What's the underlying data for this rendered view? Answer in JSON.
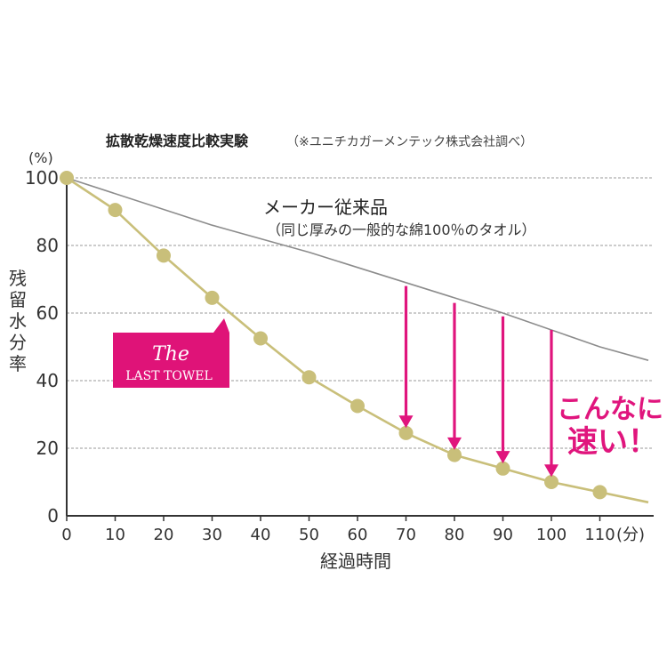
{
  "header": {
    "title": "拡散乾燥速度比較実験",
    "note": "（※ユニチカガーメンテック株式会社調べ）"
  },
  "chart_data": {
    "type": "line",
    "title": "拡散乾燥速度比較実験",
    "ylabel": "残留水分率",
    "yunit": "(%)",
    "xlabel": "経過時間",
    "xunit": "(分)",
    "xlim": [
      0,
      120
    ],
    "ylim": [
      0,
      100
    ],
    "x_ticks": [
      0,
      10,
      20,
      30,
      40,
      50,
      60,
      70,
      80,
      90,
      100,
      110
    ],
    "y_ticks": [
      0,
      20,
      40,
      60,
      80,
      100
    ],
    "grid": "horizontal-dashed",
    "series": [
      {
        "name": "メーカー従来品",
        "sublabel": "（同じ厚みの一般的な綿100％のタオル）",
        "color": "#8c8c8c",
        "x": [
          0,
          30,
          50,
          70,
          90,
          110,
          120
        ],
        "values": [
          100,
          86,
          78,
          69,
          60,
          50,
          46
        ]
      },
      {
        "name": "The LAST TOWEL",
        "color": "#c9bf7a",
        "x": [
          0,
          10,
          20,
          30,
          40,
          50,
          60,
          70,
          80,
          90,
          100,
          110,
          120
        ],
        "values": [
          100,
          90.5,
          77,
          64.5,
          52.5,
          41,
          32.5,
          24.5,
          18,
          14,
          10,
          7,
          4
        ],
        "markers_x": [
          0,
          10,
          20,
          30,
          40,
          50,
          60,
          70,
          80,
          90,
          100,
          110
        ]
      }
    ],
    "comparison_arrows": [
      {
        "x": 70,
        "from": 68,
        "to": 26
      },
      {
        "x": 80,
        "from": 63,
        "to": 19.5
      },
      {
        "x": 90,
        "from": 59,
        "to": 15.5
      },
      {
        "x": 100,
        "from": 55,
        "to": 11.5
      }
    ],
    "callout": {
      "line1": "こんなに",
      "line2": "速い！",
      "color": "#e0157d"
    },
    "brand_badge": {
      "script": "The",
      "name": "LAST TOWEL",
      "color": "#df1378"
    }
  }
}
